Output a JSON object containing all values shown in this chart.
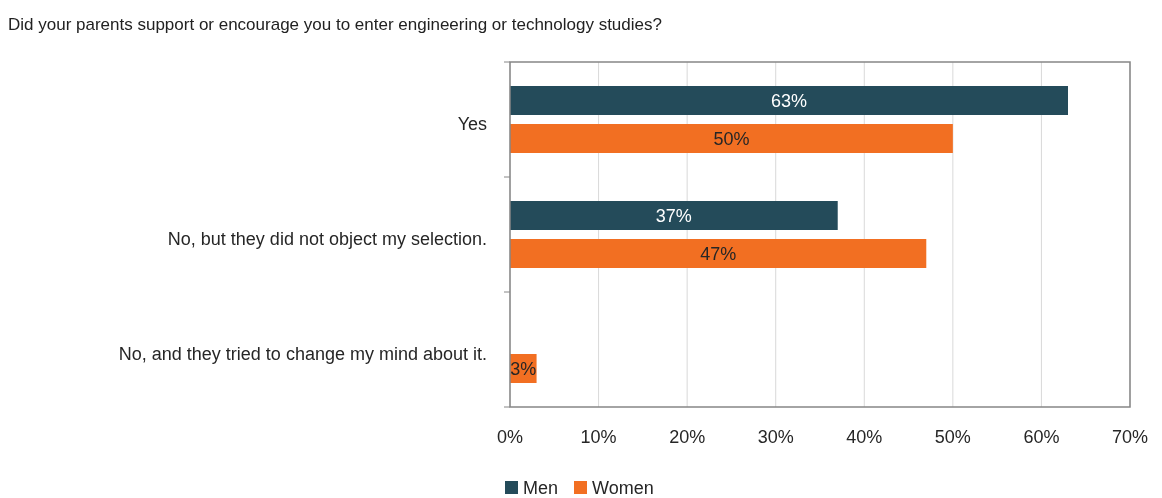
{
  "chart_data": {
    "type": "bar",
    "orientation": "horizontal",
    "title": "Did your parents support or encourage you to enter engineering or technology studies?",
    "categories": [
      "Yes",
      "No, but they did not object my selection.",
      "No, and they tried to change my mind about it."
    ],
    "series": [
      {
        "name": "Men",
        "color": "#244b5a",
        "values": [
          63,
          37,
          null
        ],
        "value_labels": [
          "63%",
          "37%",
          null
        ]
      },
      {
        "name": "Women",
        "color": "#f26f22",
        "values": [
          50,
          47,
          3
        ],
        "value_labels": [
          "50%",
          "47%",
          "3%"
        ]
      }
    ],
    "xlim": [
      0,
      70
    ],
    "xticks": [
      {
        "value": 0,
        "label": "0%"
      },
      {
        "value": 10,
        "label": "10%"
      },
      {
        "value": 20,
        "label": "20%"
      },
      {
        "value": 30,
        "label": "30%"
      },
      {
        "value": 40,
        "label": "40%"
      },
      {
        "value": 50,
        "label": "50%"
      },
      {
        "value": 60,
        "label": "60%"
      },
      {
        "value": 70,
        "label": "70%"
      }
    ],
    "grid": "x",
    "legend": "bottom"
  }
}
